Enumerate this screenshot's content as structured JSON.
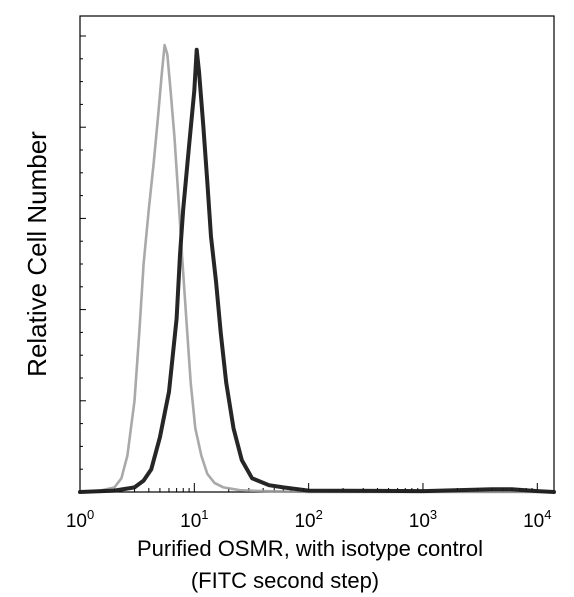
{
  "chart_data": {
    "type": "area",
    "title": "",
    "xlabel_line1": "Purified OSMR, with isotype control",
    "xlabel_line2": "(FITC second step)",
    "ylabel": "Relative Cell Number",
    "x_scale": "log",
    "xlim": [
      1,
      14000
    ],
    "ylim": [
      0,
      100
    ],
    "x_ticks": [
      {
        "value": 1,
        "base": "10",
        "exp": "0"
      },
      {
        "value": 10,
        "base": "10",
        "exp": "1"
      },
      {
        "value": 100,
        "base": "10",
        "exp": "2"
      },
      {
        "value": 1000,
        "base": "10",
        "exp": "3"
      },
      {
        "value": 10000,
        "base": "10",
        "exp": "4"
      }
    ],
    "grid": false,
    "legend": "none",
    "series": [
      {
        "style": "light-gray",
        "color": "#9a9a9a",
        "x": [
          1,
          1.5,
          2,
          2.3,
          2.6,
          3,
          3.3,
          3.6,
          4,
          4.4,
          4.8,
          5.2,
          5.5,
          5.8,
          6.2,
          6.7,
          7.2,
          7.8,
          8.5,
          9.3,
          10.2,
          11.5,
          13,
          15,
          18,
          25,
          40,
          100,
          1000,
          10000,
          14000
        ],
        "y": [
          0,
          0.3,
          1,
          3,
          8,
          20,
          35,
          50,
          62,
          72,
          82,
          92,
          98,
          96,
          88,
          78,
          66,
          52,
          38,
          24,
          14,
          8,
          4,
          2,
          1,
          0.4,
          0.2,
          0,
          0,
          0,
          0
        ]
      },
      {
        "style": "dark",
        "color": "#1a1a1a",
        "x": [
          1,
          2,
          3,
          3.6,
          4.2,
          5,
          6,
          7,
          7.5,
          8,
          9,
          10,
          10.5,
          11,
          12,
          13,
          14,
          15.5,
          17,
          19,
          22,
          26,
          32,
          45,
          60,
          100,
          1000,
          4000,
          6000,
          10000,
          14000
        ],
        "y": [
          0,
          0.3,
          1,
          2.5,
          5,
          12,
          22,
          38,
          52,
          62,
          76,
          88,
          97,
          92,
          80,
          68,
          56,
          46,
          35,
          24,
          14,
          7,
          3,
          1.5,
          1,
          0.3,
          0.2,
          0.6,
          0.6,
          0.2,
          0
        ]
      }
    ]
  }
}
